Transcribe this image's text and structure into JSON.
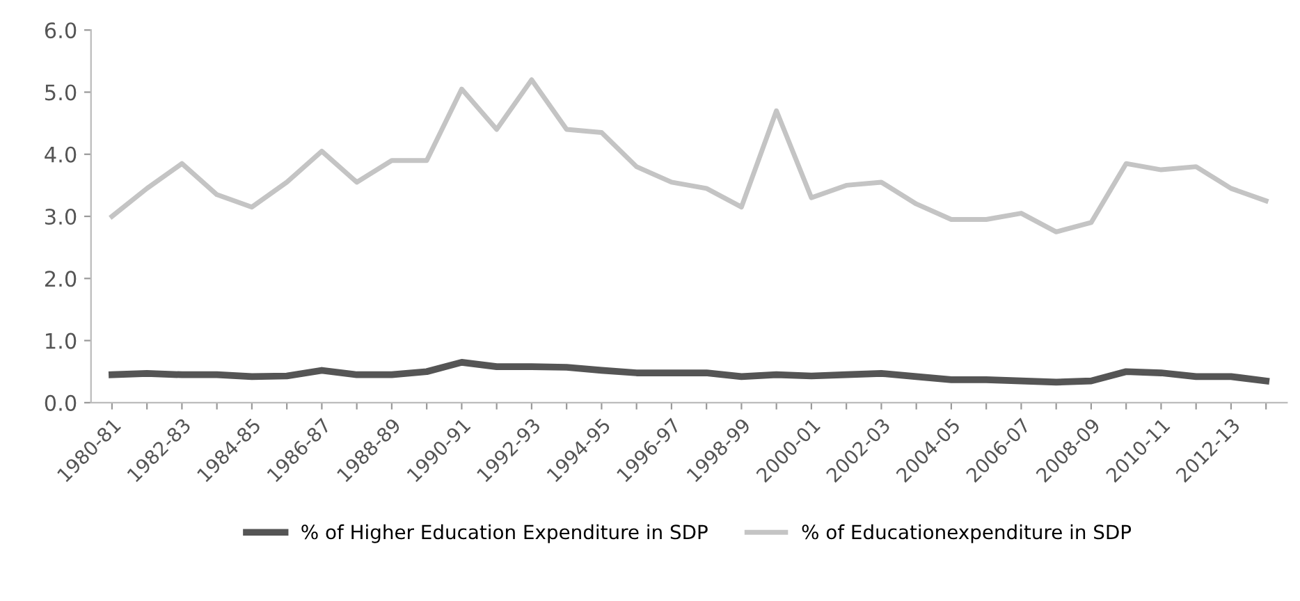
{
  "chart_data": {
    "type": "line",
    "categories": [
      "1980-81",
      null,
      "1982-83",
      null,
      "1984-85",
      null,
      "1986-87",
      null,
      "1988-89",
      null,
      "1990-91",
      null,
      "1992-93",
      null,
      "1994-95",
      null,
      "1996-97",
      null,
      "1998-99",
      null,
      "2000-01",
      null,
      "2002-03",
      null,
      "2004-05",
      null,
      "2006-07",
      null,
      "2008-09",
      null,
      "2010-11",
      null,
      "2012-13",
      null
    ],
    "series": [
      {
        "name": "% of Higher Education Expenditure in SDP",
        "color": "#555555",
        "values": [
          0.45,
          0.47,
          0.45,
          0.45,
          0.42,
          0.43,
          0.52,
          0.45,
          0.45,
          0.5,
          0.65,
          0.58,
          0.58,
          0.57,
          0.52,
          0.48,
          0.48,
          0.48,
          0.42,
          0.45,
          0.43,
          0.45,
          0.47,
          0.42,
          0.37,
          0.37,
          0.35,
          0.33,
          0.35,
          0.5,
          0.48,
          0.42,
          0.42,
          0.35
        ]
      },
      {
        "name": "% of Educationexpenditure in SDP",
        "color": "#c4c4c4",
        "values": [
          3.0,
          3.45,
          3.85,
          3.35,
          3.15,
          3.55,
          4.05,
          3.55,
          3.9,
          3.9,
          5.05,
          4.4,
          5.2,
          4.4,
          4.35,
          3.8,
          3.55,
          3.45,
          3.15,
          4.7,
          3.3,
          3.5,
          3.55,
          3.2,
          2.95,
          2.95,
          3.05,
          2.75,
          2.9,
          3.85,
          3.75,
          3.8,
          3.45,
          3.25
        ]
      }
    ],
    "ylim": [
      0,
      6
    ],
    "yticks": [
      {
        "value": 0,
        "label": "0.0"
      },
      {
        "value": 1,
        "label": "1.0"
      },
      {
        "value": 2,
        "label": "2.0"
      },
      {
        "value": 3,
        "label": "3.0"
      },
      {
        "value": 4,
        "label": "4.0"
      },
      {
        "value": 5,
        "label": "5.0"
      },
      {
        "value": 6,
        "label": "6.0"
      }
    ],
    "grid": false,
    "legend": "bottom"
  }
}
